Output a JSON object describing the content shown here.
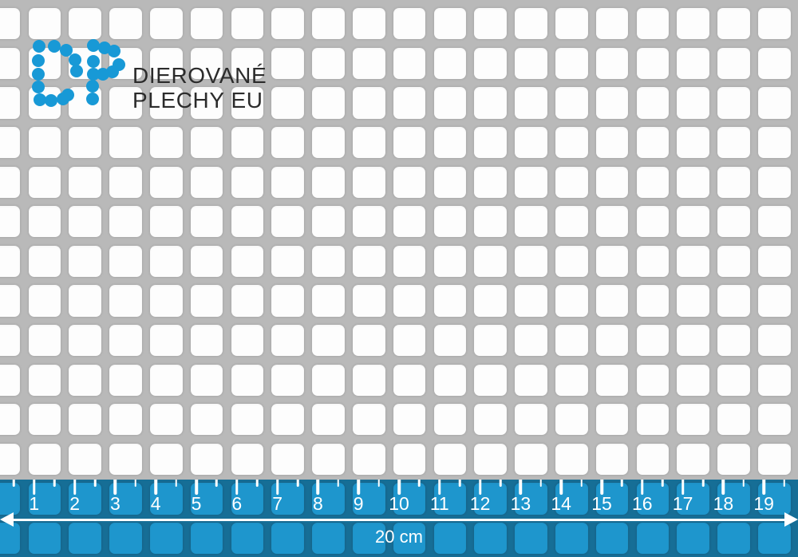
{
  "logo": {
    "icon": "dp-dots-logo",
    "line1": "DIEROVANÉ",
    "line2": "PLECHY EU"
  },
  "ruler": {
    "numbers": [
      "1",
      "2",
      "3",
      "4",
      "5",
      "6",
      "7",
      "8",
      "9",
      "10",
      "11",
      "12",
      "13",
      "14",
      "15",
      "16",
      "17",
      "18",
      "19"
    ],
    "length_label": "20 cm"
  },
  "colors": {
    "logo_blue": "#1899D6",
    "logo_text": "#2B2B2B",
    "metal_gray": "#B9B9B9",
    "hole_white": "#FDFDFD",
    "ruler_tint": "#1E97CF",
    "ruler_text": "#FFFFFF"
  }
}
